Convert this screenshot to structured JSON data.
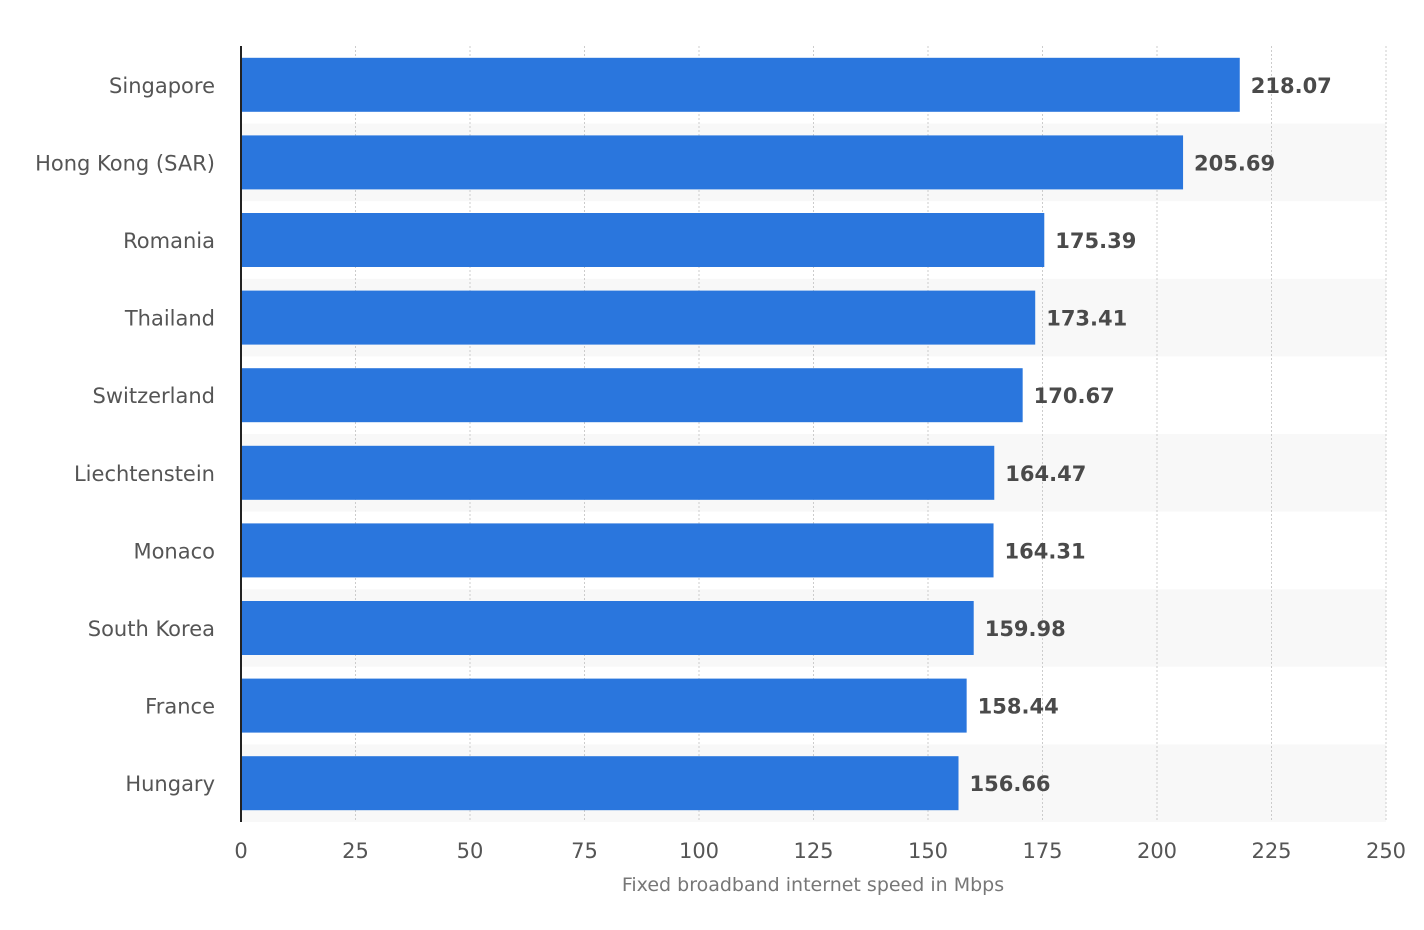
{
  "chart_data": {
    "type": "bar",
    "orientation": "horizontal",
    "categories": [
      "Singapore",
      "Hong Kong (SAR)",
      "Romania",
      "Thailand",
      "Switzerland",
      "Liechtenstein",
      "Monaco",
      "South Korea",
      "France",
      "Hungary"
    ],
    "values": [
      218.07,
      205.69,
      175.39,
      173.41,
      170.67,
      164.47,
      164.31,
      159.98,
      158.44,
      156.66
    ],
    "value_labels": [
      "218.07",
      "205.69",
      "175.39",
      "173.41",
      "170.67",
      "164.47",
      "164.31",
      "159.98",
      "158.44",
      "156.66"
    ],
    "xlabel": "Fixed broadband internet speed in Mbps",
    "ylabel": "",
    "xlim": [
      0,
      250
    ],
    "ticks": [
      0,
      25,
      50,
      75,
      100,
      125,
      150,
      175,
      200,
      225,
      250
    ],
    "tick_labels": [
      "0",
      "25",
      "50",
      "75",
      "100",
      "125",
      "150",
      "175",
      "200",
      "225",
      "250"
    ],
    "grid": true,
    "legend": "none",
    "colors": {
      "bar": "#2a76dd",
      "band": "#f8f8f8",
      "grid": "#cccccc",
      "axis": "#222222"
    }
  }
}
